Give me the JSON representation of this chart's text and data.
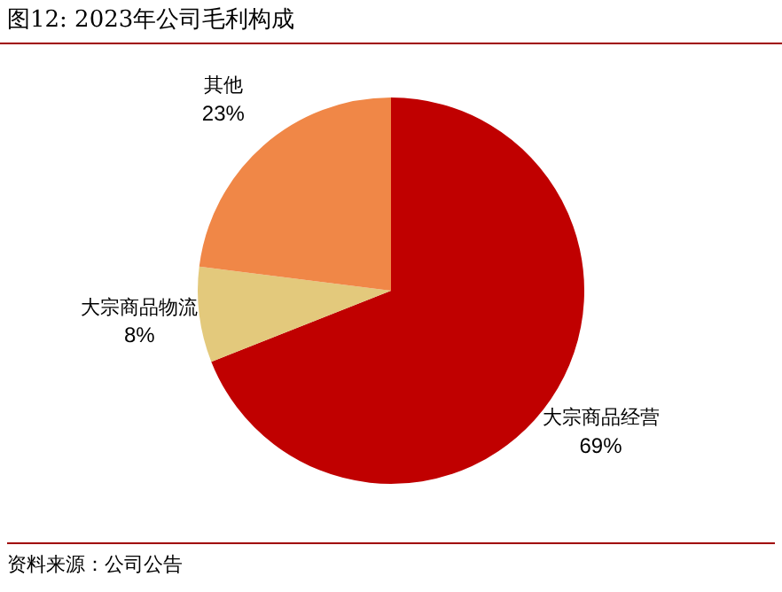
{
  "chart_data": {
    "type": "pie",
    "title": "图12:   2023年公司毛利构成",
    "categories": [
      "大宗商品经营",
      "大宗商品物流",
      "其他"
    ],
    "values": [
      69,
      8,
      23
    ],
    "colors": [
      "#c00000",
      "#e3c97c",
      "#f08747"
    ],
    "value_labels": [
      "69%",
      "8%",
      "23%"
    ],
    "legend": false,
    "annotations": [
      "资料来源：公司公告"
    ]
  }
}
